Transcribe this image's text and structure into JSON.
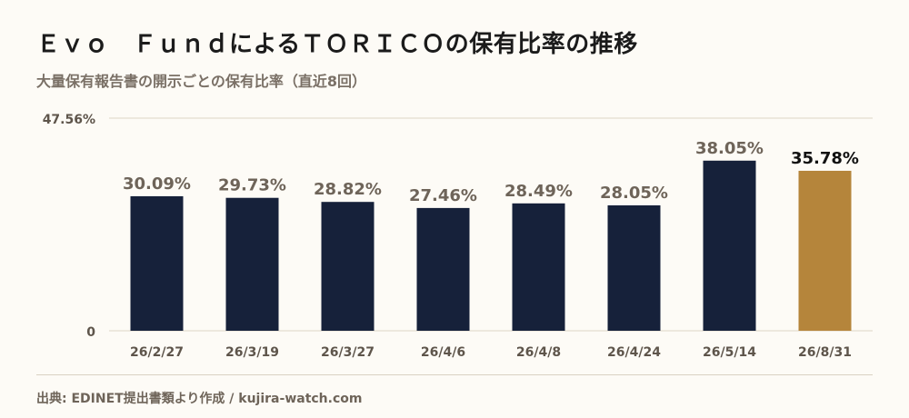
{
  "title": "Ｅｖｏ　ＦｕｎｄによるＴＯＲＩＣＯの保有比率の推移",
  "subtitle": "大量保有報告書の開示ごとの保有比率（直近8回）",
  "source": "出典: EDINET提出書類より作成 / kujira-watch.com",
  "colors": {
    "background": "#fdfbf6",
    "bar": "#16213a",
    "highlight_bar": "#b5853b",
    "value_label": "#6e6459",
    "highlight_label": "#111111",
    "axis_text": "#5e554b",
    "gridline": "#ddd6c6"
  },
  "chart_data": {
    "type": "bar",
    "categories": [
      "26/2/27",
      "26/3/19",
      "26/3/27",
      "26/4/6",
      "26/4/8",
      "26/4/24",
      "26/5/14",
      "26/8/31"
    ],
    "values": [
      30.09,
      29.73,
      28.82,
      27.46,
      28.49,
      28.05,
      38.05,
      35.78
    ],
    "value_labels": [
      "30.09%",
      "29.73%",
      "28.82%",
      "27.46%",
      "28.49%",
      "28.05%",
      "38.05%",
      "35.78%"
    ],
    "highlight_index": 7,
    "ylim": [
      0,
      47.56
    ],
    "y_tick_labels": [
      "0",
      "47.56%"
    ],
    "grid": true,
    "xlabel": "",
    "ylabel": ""
  }
}
